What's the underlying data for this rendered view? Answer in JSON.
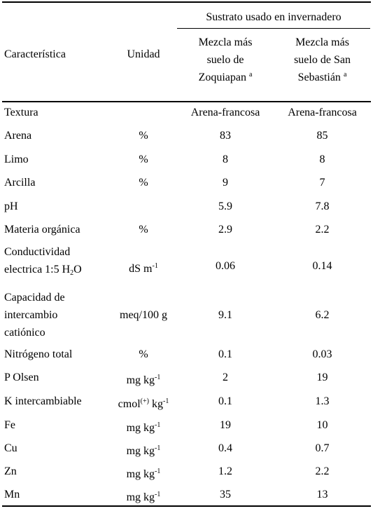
{
  "table": {
    "header": {
      "group": "Sustrato usado en invernadero",
      "columns": [
        "Característica",
        "Unidad",
        [
          "Mezcla más",
          "suelo de",
          [
            "Zoquiapan ",
            {
              "sup": "a"
            }
          ]
        ],
        [
          "Mezcla más",
          "suelo de San",
          [
            "Sebastián ",
            {
              "sup": "a"
            }
          ]
        ]
      ]
    },
    "rows": [
      [
        "Textura",
        null,
        "Arena-francosa",
        "Arena-francosa"
      ],
      [
        "Arena",
        "%",
        "83",
        "85"
      ],
      [
        "Limo",
        "%",
        "8",
        "8"
      ],
      [
        "Arcilla",
        "%",
        "9",
        "7"
      ],
      [
        "pH",
        null,
        "5.9",
        "7.8"
      ],
      [
        "Materia orgánica",
        "%",
        "2.9",
        "2.2"
      ],
      [
        [
          "Conductividad",
          [
            "electrica 1:5 H",
            {
              "sub": "2"
            },
            "O"
          ]
        ],
        [
          [
            "dS m",
            {
              "sup": "-1"
            }
          ]
        ],
        "0.06",
        "0.14"
      ],
      [
        [
          "Capacidad de",
          "intercambio",
          "catiónico"
        ],
        "meq/100 g",
        "9.1",
        "6.2"
      ],
      [
        "Nitrógeno total",
        "%",
        "0.1",
        "0.03"
      ],
      [
        "P Olsen",
        [
          [
            "mg kg",
            {
              "sup": "-1"
            }
          ]
        ],
        "2",
        "19"
      ],
      [
        "K intercambiable",
        [
          [
            "cmol",
            {
              "sup": "(+)"
            },
            " kg",
            {
              "sup": "-1"
            }
          ]
        ],
        "0.1",
        "1.3"
      ],
      [
        "Fe",
        [
          [
            "mg kg",
            {
              "sup": "-1"
            }
          ]
        ],
        "19",
        "10"
      ],
      [
        "Cu",
        [
          [
            "mg kg",
            {
              "sup": "-1"
            }
          ]
        ],
        "0.4",
        "0.7"
      ],
      [
        "Zn",
        [
          [
            "mg kg",
            {
              "sup": "-1"
            }
          ]
        ],
        "1.2",
        "2.2"
      ],
      [
        "Mn",
        [
          [
            "mg kg",
            {
              "sup": "-1"
            }
          ]
        ],
        "35",
        "13"
      ]
    ]
  }
}
